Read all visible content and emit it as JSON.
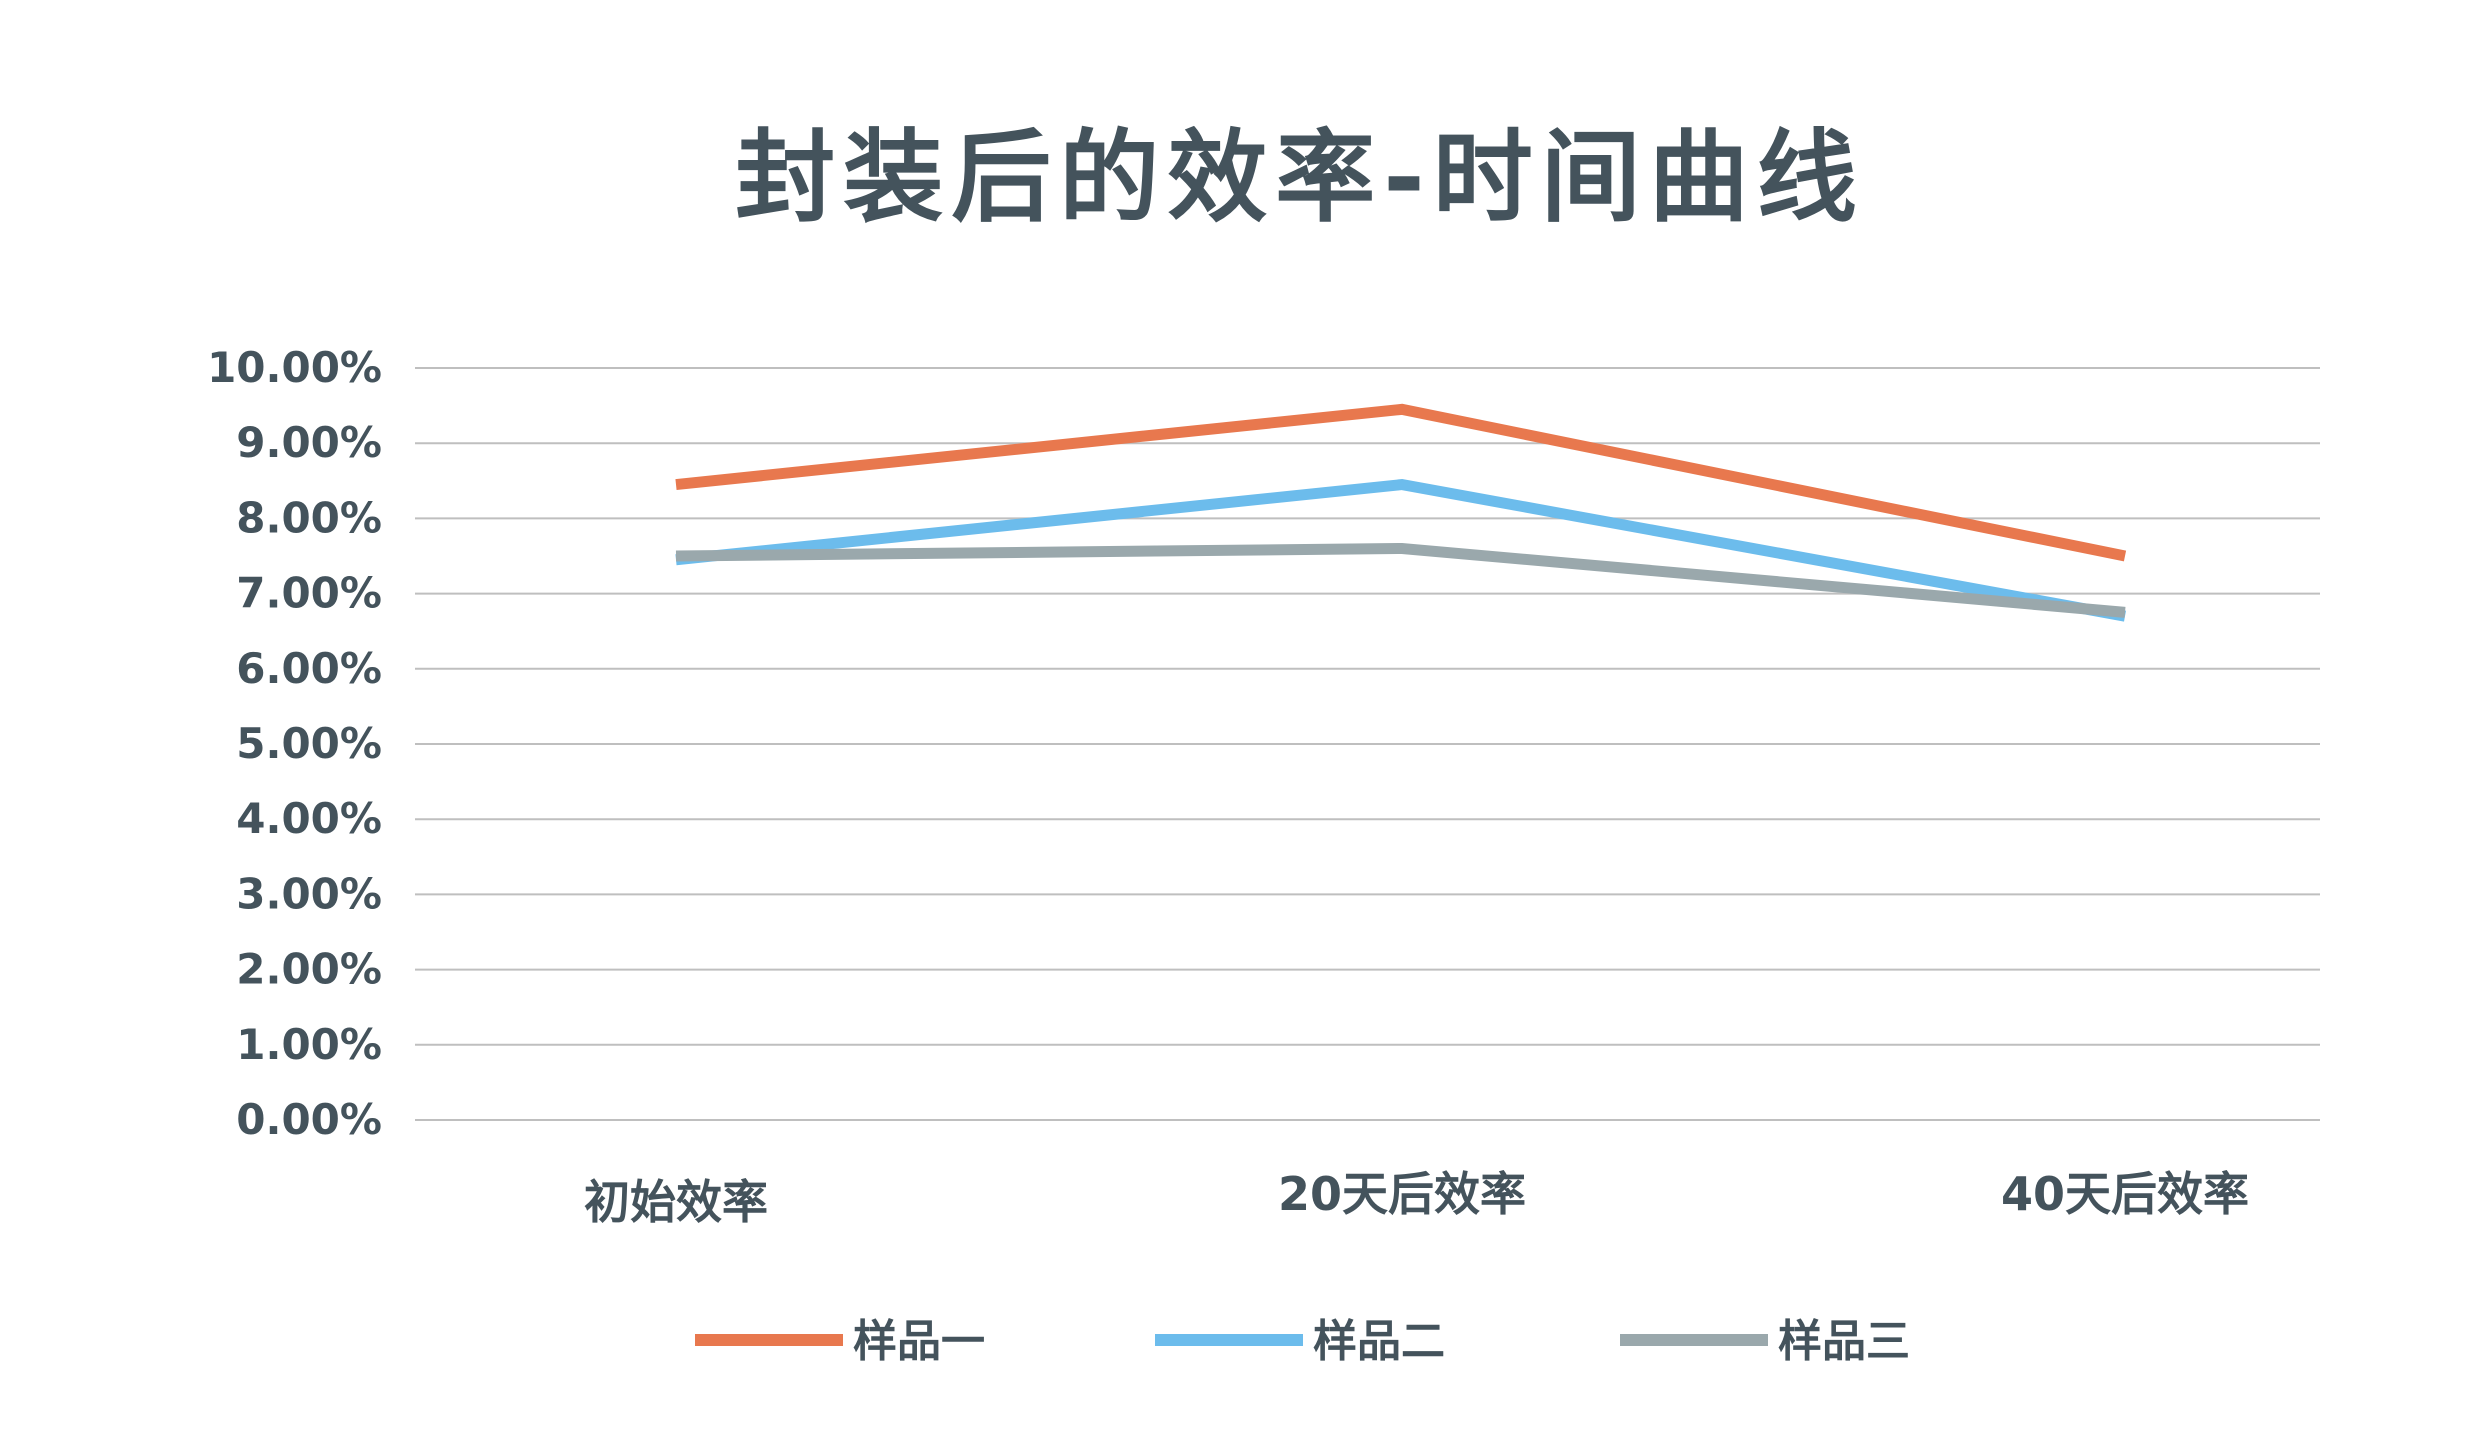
{
  "chart_data": {
    "type": "line",
    "title": "封装后的效率-时间曲线",
    "categories": [
      "初始效率",
      "20天后效率",
      "40天后效率"
    ],
    "y_ticks": [
      "0.00%",
      "1.00%",
      "2.00%",
      "3.00%",
      "4.00%",
      "5.00%",
      "6.00%",
      "7.00%",
      "8.00%",
      "9.00%",
      "10.00%"
    ],
    "ylim": [
      0,
      10
    ],
    "y_unit": "%",
    "grid": true,
    "legend_position": "bottom",
    "series": [
      {
        "name": "样品一",
        "values": [
          8.45,
          9.45,
          7.5
        ],
        "color": "#e8784e"
      },
      {
        "name": "样品二",
        "values": [
          7.45,
          8.45,
          6.7
        ],
        "color": "#6cbcec"
      },
      {
        "name": "样品三",
        "values": [
          7.5,
          7.6,
          6.75
        ],
        "color": "#9aa8ac"
      }
    ]
  }
}
